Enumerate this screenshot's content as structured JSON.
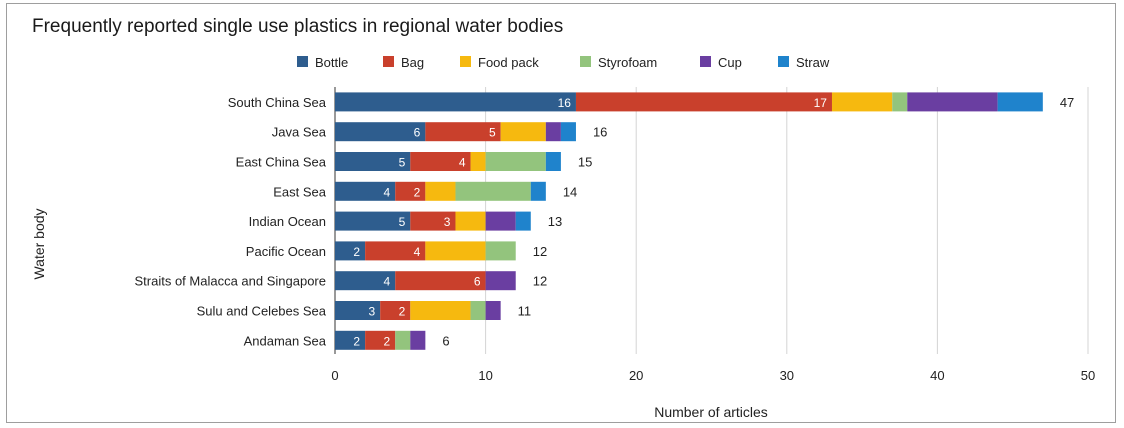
{
  "chart_data": {
    "type": "bar",
    "orientation": "horizontal",
    "stacked": true,
    "title": "Frequently reported single use plastics in regional water bodies",
    "xlabel": "Number of articles",
    "ylabel": "Water body",
    "xlim": [
      0,
      50
    ],
    "xticks": [
      0,
      10,
      20,
      30,
      40,
      50
    ],
    "grid": "vertical",
    "legend_position": "top",
    "categories": [
      "South China Sea",
      "Java Sea",
      "East China Sea",
      "East Sea",
      "Indian Ocean",
      "Pacific Ocean",
      "Straits of Malacca and Singapore",
      "Sulu and Celebes Sea",
      "Andaman Sea"
    ],
    "series": [
      {
        "name": "Bottle",
        "color": "#2e5d8e",
        "values": [
          16,
          6,
          5,
          4,
          5,
          2,
          4,
          3,
          2
        ]
      },
      {
        "name": "Bag",
        "color": "#c9402c",
        "values": [
          17,
          5,
          4,
          2,
          3,
          4,
          6,
          2,
          2
        ]
      },
      {
        "name": "Food pack",
        "color": "#f6b90f",
        "values": [
          4,
          3,
          1,
          2,
          2,
          4,
          0,
          4,
          0
        ]
      },
      {
        "name": "Styrofoam",
        "color": "#93c47d",
        "values": [
          1,
          0,
          4,
          5,
          0,
          2,
          0,
          1,
          1
        ]
      },
      {
        "name": "Cup",
        "color": "#6a3ea1",
        "values": [
          6,
          1,
          0,
          0,
          2,
          0,
          2,
          1,
          1
        ]
      },
      {
        "name": "Straw",
        "color": "#1f83cc",
        "values": [
          3,
          1,
          1,
          1,
          1,
          0,
          0,
          0,
          0
        ]
      }
    ],
    "totals": [
      47,
      16,
      15,
      14,
      13,
      12,
      12,
      11,
      6
    ],
    "labeled_series": [
      "Bottle",
      "Bag"
    ]
  }
}
